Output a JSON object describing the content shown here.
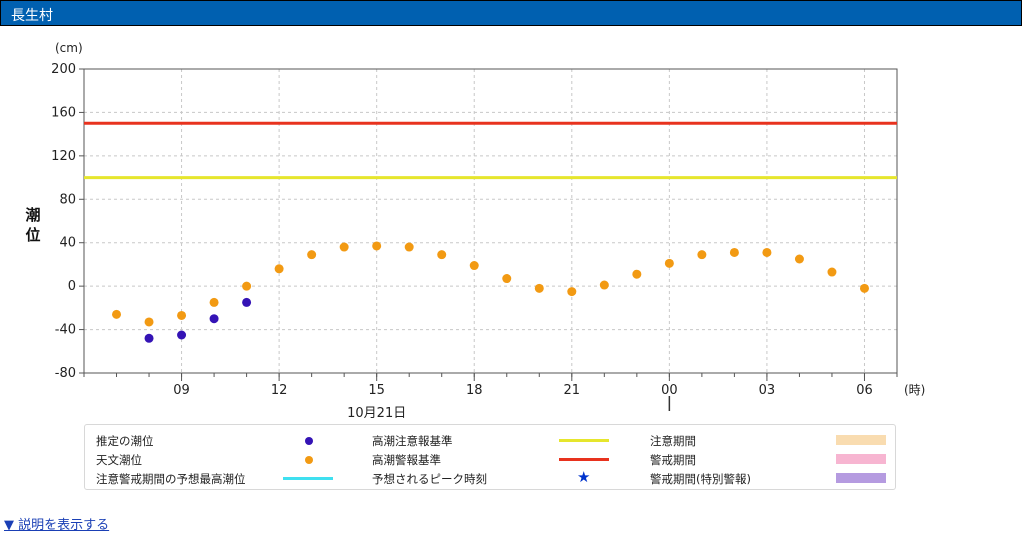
{
  "header": {
    "title": "長生村"
  },
  "chart_data": {
    "type": "scatter",
    "unit_label": "(cm)",
    "ylabel": "潮位",
    "xunit_label": "(時)",
    "date_label": "10月21日",
    "ylim": [
      -80,
      200
    ],
    "yticks": [
      -80,
      -40,
      0,
      40,
      80,
      120,
      160,
      200
    ],
    "x_hours_range": [
      6,
      31
    ],
    "xticks": [
      {
        "h": 9,
        "label": "09"
      },
      {
        "h": 12,
        "label": "12"
      },
      {
        "h": 15,
        "label": "15"
      },
      {
        "h": 18,
        "label": "18"
      },
      {
        "h": 21,
        "label": "21"
      },
      {
        "h": 24,
        "label": "00"
      },
      {
        "h": 27,
        "label": "03"
      },
      {
        "h": 30,
        "label": "06"
      }
    ],
    "reference_lines": [
      {
        "name": "高潮警報基準",
        "value": 150,
        "color": "#e8321e"
      },
      {
        "name": "高潮注意報基準",
        "value": 100,
        "color": "#e6e62d"
      }
    ],
    "series": [
      {
        "name": "推定の潮位",
        "color": "#3413b5",
        "points": [
          [
            8,
            -48
          ],
          [
            9,
            -45
          ],
          [
            10,
            -30
          ],
          [
            11,
            -15
          ]
        ]
      },
      {
        "name": "天文潮位",
        "color": "#f29a13",
        "points": [
          [
            7,
            -26
          ],
          [
            8,
            -33
          ],
          [
            9,
            -27
          ],
          [
            10,
            -15
          ],
          [
            11,
            0
          ],
          [
            12,
            16
          ],
          [
            13,
            29
          ],
          [
            14,
            36
          ],
          [
            15,
            37
          ],
          [
            16,
            36
          ],
          [
            17,
            29
          ],
          [
            18,
            19
          ],
          [
            19,
            7
          ],
          [
            20,
            -2
          ],
          [
            21,
            -5
          ],
          [
            22,
            1
          ],
          [
            23,
            11
          ],
          [
            24,
            21
          ],
          [
            25,
            29
          ],
          [
            26,
            31
          ],
          [
            27,
            31
          ],
          [
            28,
            25
          ],
          [
            29,
            13
          ],
          [
            30,
            -2
          ]
        ]
      }
    ]
  },
  "legend": {
    "items": [
      {
        "label": "推定の潮位",
        "swatch": "dot",
        "color": "#3413b5"
      },
      {
        "label": "高潮注意報基準",
        "swatch": "line",
        "color": "#e6e62d"
      },
      {
        "label": "注意期間",
        "swatch": "box",
        "color": "#f9dcb0"
      },
      {
        "label": "天文潮位",
        "swatch": "dot",
        "color": "#f29a13"
      },
      {
        "label": "高潮警報基準",
        "swatch": "line",
        "color": "#e8321e"
      },
      {
        "label": "警戒期間",
        "swatch": "box",
        "color": "#f7b5d1"
      },
      {
        "label": "注意警戒期間の予想最高潮位",
        "swatch": "line",
        "color": "#3fe0f0"
      },
      {
        "label": "予想されるピーク時刻",
        "swatch": "star",
        "color": "#0033cc",
        "glyph": "★"
      },
      {
        "label": "警戒期間(特別警報)",
        "swatch": "box",
        "color": "#b59be0"
      }
    ]
  },
  "footer": {
    "explain_link": "▼ 説明を表示する"
  }
}
